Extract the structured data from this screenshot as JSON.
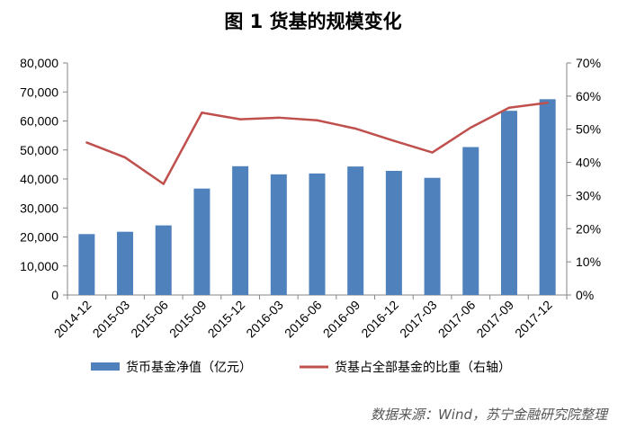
{
  "chart_data": {
    "type": "bar+line",
    "title": "图 1  货基的规模变化",
    "categories": [
      "2014-12",
      "2015-03",
      "2015-06",
      "2015-09",
      "2015-12",
      "2016-03",
      "2016-06",
      "2016-09",
      "2016-12",
      "2017-03",
      "2017-06",
      "2017-09",
      "2017-12"
    ],
    "series": [
      {
        "name": "货币基金净值（亿元）",
        "type": "bar",
        "axis": "left",
        "color": "#4F81BD",
        "values": [
          21000,
          21800,
          24000,
          36700,
          44400,
          41600,
          41900,
          44300,
          42800,
          40400,
          51000,
          63500,
          67500
        ]
      },
      {
        "name": "货基占全部基金的比重（右轴）",
        "type": "line",
        "axis": "right",
        "color": "#C0504D",
        "values": [
          0.46,
          0.415,
          0.335,
          0.55,
          0.53,
          0.535,
          0.527,
          0.502,
          0.465,
          0.43,
          0.505,
          0.565,
          0.58
        ]
      }
    ],
    "y_left": {
      "min": 0,
      "max": 80000,
      "step": 10000,
      "tick_labels": [
        "0",
        "10,000",
        "20,000",
        "30,000",
        "40,000",
        "50,000",
        "60,000",
        "70,000",
        "80,000"
      ]
    },
    "y_right": {
      "min": 0,
      "max": 0.7,
      "step": 0.1,
      "tick_labels": [
        "0%",
        "10%",
        "20%",
        "30%",
        "40%",
        "50%",
        "60%",
        "70%"
      ]
    },
    "grid": false,
    "legend": {
      "placement": "bottom"
    }
  },
  "source_note": "数据来源：Wind，苏宁金融研究院整理"
}
